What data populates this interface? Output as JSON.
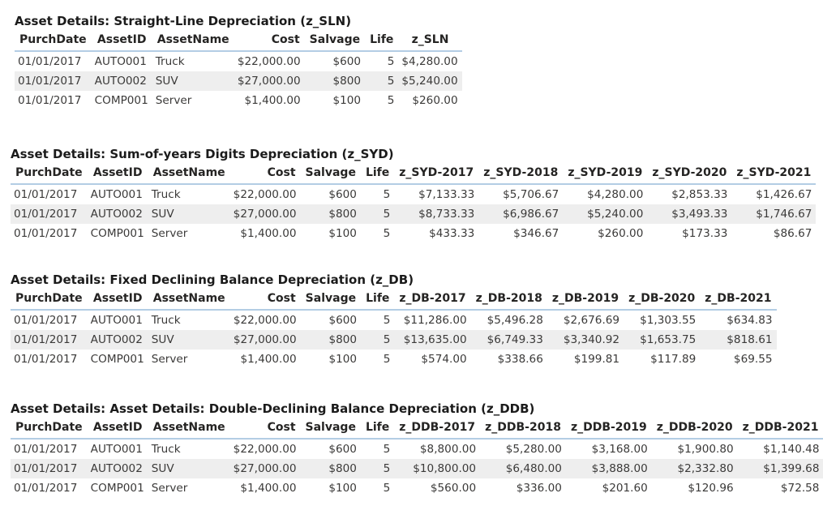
{
  "tables": [
    {
      "title": "Asset Details: Straight-Line Depreciation (z_SLN)",
      "headers": [
        "PurchDate",
        "AssetID",
        "AssetName",
        "Cost",
        "Salvage",
        "Life",
        "z_SLN"
      ],
      "rows": [
        [
          "01/01/2017",
          "AUTO001",
          "Truck",
          "$22,000.00",
          "$600",
          "5",
          "$4,280.00"
        ],
        [
          "01/01/2017",
          "AUTO002",
          "SUV",
          "$27,000.00",
          "$800",
          "5",
          "$5,240.00"
        ],
        [
          "01/01/2017",
          "COMP001",
          "Server",
          "$1,400.00",
          "$100",
          "5",
          "$260.00"
        ]
      ]
    },
    {
      "title": "Asset Details: Sum-of-years Digits Depreciation (z_SYD)",
      "headers": [
        "PurchDate",
        "AssetID",
        "AssetName",
        "Cost",
        "Salvage",
        "Life",
        "z_SYD-2017",
        "z_SYD-2018",
        "z_SYD-2019",
        "z_SYD-2020",
        "z_SYD-2021"
      ],
      "rows": [
        [
          "01/01/2017",
          "AUTO001",
          "Truck",
          "$22,000.00",
          "$600",
          "5",
          "$7,133.33",
          "$5,706.67",
          "$4,280.00",
          "$2,853.33",
          "$1,426.67"
        ],
        [
          "01/01/2017",
          "AUTO002",
          "SUV",
          "$27,000.00",
          "$800",
          "5",
          "$8,733.33",
          "$6,986.67",
          "$5,240.00",
          "$3,493.33",
          "$1,746.67"
        ],
        [
          "01/01/2017",
          "COMP001",
          "Server",
          "$1,400.00",
          "$100",
          "5",
          "$433.33",
          "$346.67",
          "$260.00",
          "$173.33",
          "$86.67"
        ]
      ]
    },
    {
      "title": "Asset Details: Fixed Declining Balance Depreciation (z_DB)",
      "headers": [
        "PurchDate",
        "AssetID",
        "AssetName",
        "Cost",
        "Salvage",
        "Life",
        "z_DB-2017",
        "z_DB-2018",
        "z_DB-2019",
        "z_DB-2020",
        "z_DB-2021"
      ],
      "rows": [
        [
          "01/01/2017",
          "AUTO001",
          "Truck",
          "$22,000.00",
          "$600",
          "5",
          "$11,286.00",
          "$5,496.28",
          "$2,676.69",
          "$1,303.55",
          "$634.83"
        ],
        [
          "01/01/2017",
          "AUTO002",
          "SUV",
          "$27,000.00",
          "$800",
          "5",
          "$13,635.00",
          "$6,749.33",
          "$3,340.92",
          "$1,653.75",
          "$818.61"
        ],
        [
          "01/01/2017",
          "COMP001",
          "Server",
          "$1,400.00",
          "$100",
          "5",
          "$574.00",
          "$338.66",
          "$199.81",
          "$117.89",
          "$69.55"
        ]
      ]
    },
    {
      "title": "Asset Details: Asset Details: Double-Declining Balance Depreciation (z_DDB)",
      "headers": [
        "PurchDate",
        "AssetID",
        "AssetName",
        "Cost",
        "Salvage",
        "Life",
        "z_DDB-2017",
        "z_DDB-2018",
        "z_DDB-2019",
        "z_DDB-2020",
        "z_DDB-2021"
      ],
      "rows": [
        [
          "01/01/2017",
          "AUTO001",
          "Truck",
          "$22,000.00",
          "$600",
          "5",
          "$8,800.00",
          "$5,280.00",
          "$3,168.00",
          "$1,900.80",
          "$1,140.48"
        ],
        [
          "01/01/2017",
          "AUTO002",
          "SUV",
          "$27,000.00",
          "$800",
          "5",
          "$10,800.00",
          "$6,480.00",
          "$3,888.00",
          "$2,332.80",
          "$1,399.68"
        ],
        [
          "01/01/2017",
          "COMP001",
          "Server",
          "$1,400.00",
          "$100",
          "5",
          "$560.00",
          "$336.00",
          "$201.60",
          "$120.96",
          "$72.58"
        ]
      ]
    }
  ]
}
